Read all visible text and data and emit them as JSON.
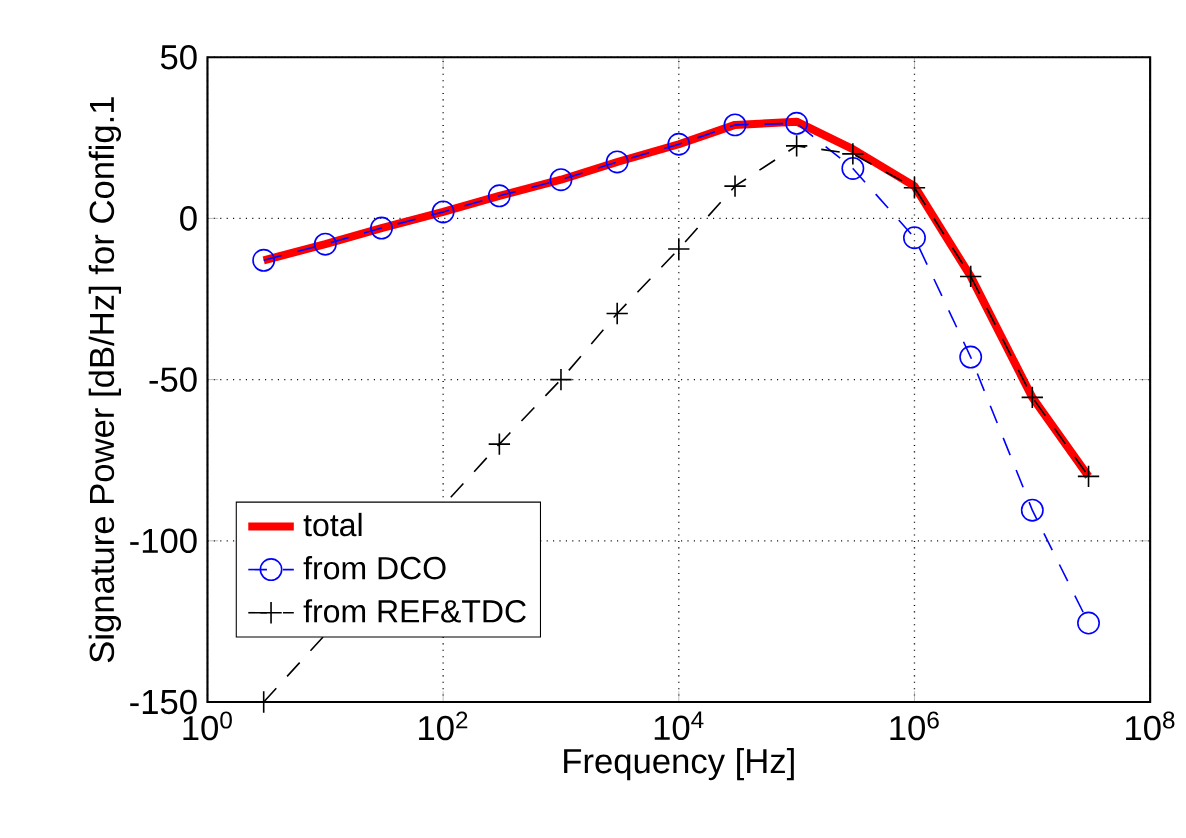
{
  "chart_data": {
    "type": "line",
    "xlabel": "Frequency [Hz]",
    "ylabel": "Signature Power [dB/Hz] for Config.1",
    "x": [
      3,
      10,
      30,
      100,
      300,
      1000,
      3000,
      10000,
      30000,
      100000,
      300000,
      1000000,
      3000000,
      10000000,
      30000000
    ],
    "series": [
      {
        "name": "total",
        "color": "#ff0000",
        "marker": "none",
        "line_style": "solid",
        "values": [
          -13,
          -8,
          -3,
          2,
          7,
          12,
          17.5,
          23,
          29,
          30,
          21.5,
          10,
          -18,
          -55.5,
          -80
        ]
      },
      {
        "name": "from DCO",
        "color": "#0000ff",
        "marker": "circle",
        "line_style": "dashed",
        "values": [
          -13,
          -8,
          -3,
          2,
          7,
          12,
          17.5,
          23,
          29,
          29.5,
          15.5,
          -6,
          -43,
          -90.5,
          -125.5
        ]
      },
      {
        "name": "from REF&TDC",
        "color": "#000000",
        "marker": "cross",
        "line_style": "dashed",
        "values": [
          -150,
          null,
          null,
          null,
          -70,
          -50,
          -29.5,
          -9.5,
          10,
          22.5,
          20,
          9.5,
          -18,
          -55.5,
          -80
        ]
      }
    ],
    "log": "x",
    "xlim": [
      1,
      100000000
    ],
    "ylim": [
      -150,
      50
    ],
    "xticks": [
      {
        "value": 1,
        "label": "10$^{0}$"
      },
      {
        "value": 100,
        "label": "10$^{2}$"
      },
      {
        "value": 10000,
        "label": "10$^{4}$"
      },
      {
        "value": 1000000,
        "label": "10$^{6}$"
      },
      {
        "value": 100000000,
        "label": "10$^{8}$"
      }
    ],
    "yticks": [
      -150,
      -100,
      -50,
      0,
      50
    ],
    "grid": true,
    "legend": "bottom left"
  }
}
